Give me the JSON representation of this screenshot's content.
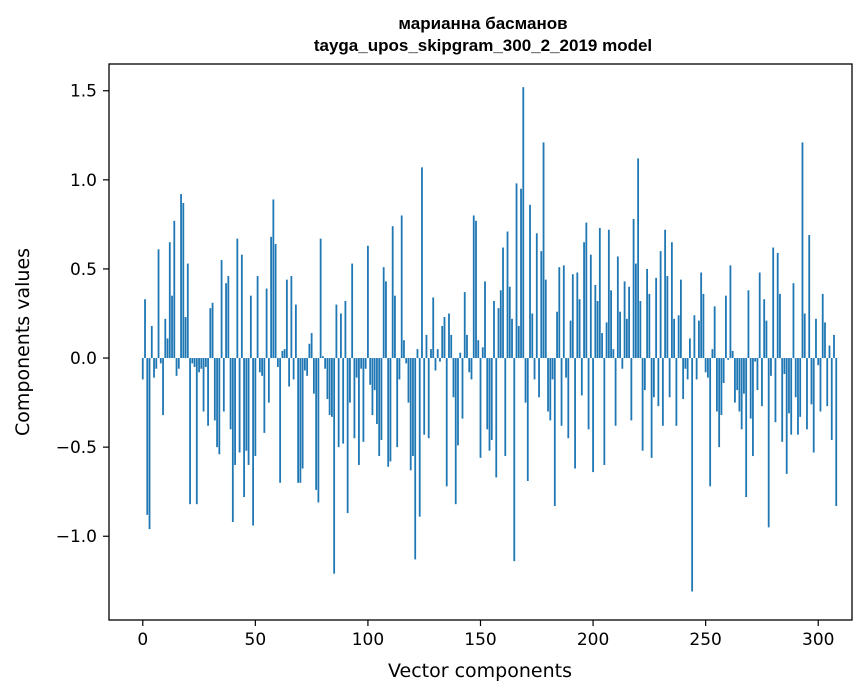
{
  "chart_data": {
    "type": "bar",
    "title_line1": "марианна басманов",
    "title_line2": "tayga_upos_skipgram_300_2_2019 model",
    "xlabel": "Vector components",
    "ylabel": "Components values",
    "xlim": [
      -15,
      315
    ],
    "ylim": [
      -1.47,
      1.65
    ],
    "xticks": [
      0,
      50,
      100,
      150,
      200,
      250,
      300
    ],
    "yticks": [
      -1.0,
      -0.5,
      0.0,
      0.5,
      1.0,
      1.5
    ],
    "ytick_labels": [
      "−1.0",
      "−0.5",
      "0.0",
      "0.5",
      "1.0",
      "1.5"
    ],
    "bar_color": "#1f77b4",
    "grid": false,
    "values": [
      -0.12,
      0.33,
      -0.88,
      -0.96,
      0.18,
      -0.11,
      -0.06,
      0.61,
      -0.03,
      -0.32,
      0.22,
      0.11,
      0.65,
      0.35,
      0.77,
      -0.1,
      -0.06,
      0.92,
      0.87,
      0.23,
      0.53,
      -0.82,
      -0.03,
      -0.05,
      -0.82,
      -0.08,
      -0.06,
      -0.3,
      -0.05,
      -0.38,
      0.28,
      0.31,
      -0.35,
      -0.5,
      -0.54,
      0.55,
      -0.3,
      0.42,
      0.46,
      -0.4,
      -0.92,
      -0.6,
      0.67,
      -0.53,
      0.58,
      -0.78,
      -0.52,
      -0.6,
      0.35,
      -0.94,
      -0.55,
      0.46,
      -0.08,
      -0.1,
      -0.42,
      0.39,
      -0.25,
      0.68,
      0.89,
      0.64,
      -0.05,
      -0.7,
      0.04,
      0.05,
      0.44,
      -0.16,
      0.46,
      -0.12,
      0.3,
      -0.7,
      -0.7,
      -0.62,
      -0.07,
      -0.1,
      0.08,
      0.14,
      -0.2,
      -0.74,
      -0.81,
      0.67,
      0.01,
      -0.06,
      -0.23,
      -0.32,
      -0.33,
      -1.21,
      0.3,
      -0.5,
      0.25,
      -0.48,
      0.32,
      -0.87,
      -0.25,
      0.53,
      -0.45,
      -0.11,
      -0.6,
      -0.06,
      -0.47,
      -0.06,
      0.63,
      -0.15,
      -0.32,
      -0.18,
      -0.37,
      -0.55,
      -0.46,
      0.51,
      0.43,
      -0.61,
      -0.58,
      0.74,
      0.35,
      -0.5,
      -0.12,
      0.8,
      0.1,
      -0.03,
      -0.25,
      -0.63,
      -0.55,
      -1.13,
      0.05,
      -0.89,
      1.07,
      -0.43,
      0.13,
      -0.45,
      0.05,
      0.34,
      -0.07,
      0.05,
      -0.02,
      0.18,
      0.23,
      -0.72,
      0.25,
      0.13,
      -0.22,
      -0.82,
      -0.49,
      0.03,
      -0.34,
      0.37,
      0.13,
      -0.08,
      -0.12,
      0.8,
      0.77,
      0.1,
      -0.56,
      0.06,
      0.43,
      -0.4,
      -0.52,
      -0.46,
      0.32,
      -0.67,
      0.28,
      0.38,
      0.62,
      -0.55,
      0.71,
      0.4,
      0.22,
      -1.14,
      0.98,
      0.18,
      0.95,
      1.52,
      -0.25,
      -0.69,
      0.86,
      0.25,
      -0.12,
      0.7,
      -0.22,
      0.6,
      1.21,
      0.44,
      -0.3,
      -0.35,
      -0.12,
      -0.83,
      0.26,
      0.51,
      -0.38,
      0.52,
      -0.11,
      -0.45,
      0.21,
      0.47,
      -0.62,
      0.48,
      0.33,
      -0.21,
      0.65,
      0.76,
      -0.4,
      0.58,
      -0.64,
      0.41,
      0.32,
      0.73,
      0.14,
      -0.6,
      0.2,
      0.72,
      0.38,
      0.05,
      -0.38,
      0.57,
      0.26,
      -0.06,
      0.43,
      0.22,
      0.4,
      -0.35,
      0.78,
      0.53,
      1.12,
      0.32,
      -0.52,
      -0.18,
      0.5,
      0.36,
      -0.56,
      -0.22,
      0.45,
      -0.27,
      0.6,
      -0.38,
      0.72,
      0.46,
      -0.22,
      0.65,
      0.22,
      -0.38,
      0.24,
      0.44,
      -0.23,
      -0.06,
      -0.12,
      0.11,
      -1.31,
      0.24,
      -0.12,
      0.21,
      0.48,
      0.36,
      -0.08,
      -0.11,
      -0.72,
      0.05,
      0.29,
      -0.3,
      -0.5,
      -0.32,
      -0.14,
      0.35,
      -0.01,
      0.52,
      0.04,
      -0.25,
      -0.18,
      -0.3,
      -0.4,
      -0.2,
      -0.78,
      0.38,
      -0.34,
      -0.55,
      -0.02,
      -0.18,
      0.48,
      -0.27,
      0.33,
      0.21,
      -0.95,
      -0.1,
      0.62,
      -0.36,
      0.59,
      0.36,
      -0.47,
      -0.09,
      -0.65,
      -0.31,
      -0.43,
      0.42,
      -0.22,
      -0.43,
      -0.33,
      1.21,
      0.25,
      -0.4,
      0.69,
      -0.26,
      -0.53,
      0.22,
      -0.04,
      -0.3,
      0.36,
      0.2,
      -0.27,
      0.07,
      -0.46,
      0.13,
      -0.83
    ]
  }
}
